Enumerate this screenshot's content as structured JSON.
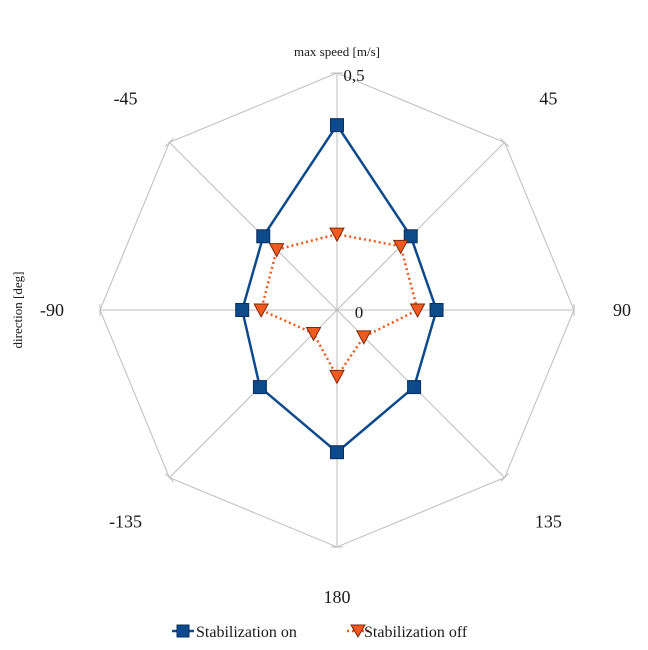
{
  "chart_data": {
    "type": "radar",
    "axis_title": "max speed [m/s]",
    "side_label": "direction [deg]",
    "radial_range": [
      0,
      0.5
    ],
    "radial_ticks": [
      "0",
      "0,5"
    ],
    "directions": [
      "0",
      "-45",
      "-90",
      "-135",
      "180",
      "135",
      "90",
      "45"
    ],
    "grid": true,
    "legend_position": "bottom",
    "series": [
      {
        "name": "Stabilization on",
        "color": "#0d4a8c",
        "marker": "square",
        "line": "solid",
        "values": [
          0.39,
          0.22,
          0.2,
          0.23,
          0.3,
          0.23,
          0.21,
          0.22
        ]
      },
      {
        "name": "Stabilization off",
        "color": "#f05a1e",
        "marker": "triangle-down",
        "line": "dotted",
        "values": [
          0.16,
          0.18,
          0.16,
          0.07,
          0.14,
          0.08,
          0.17,
          0.19
        ]
      }
    ]
  }
}
